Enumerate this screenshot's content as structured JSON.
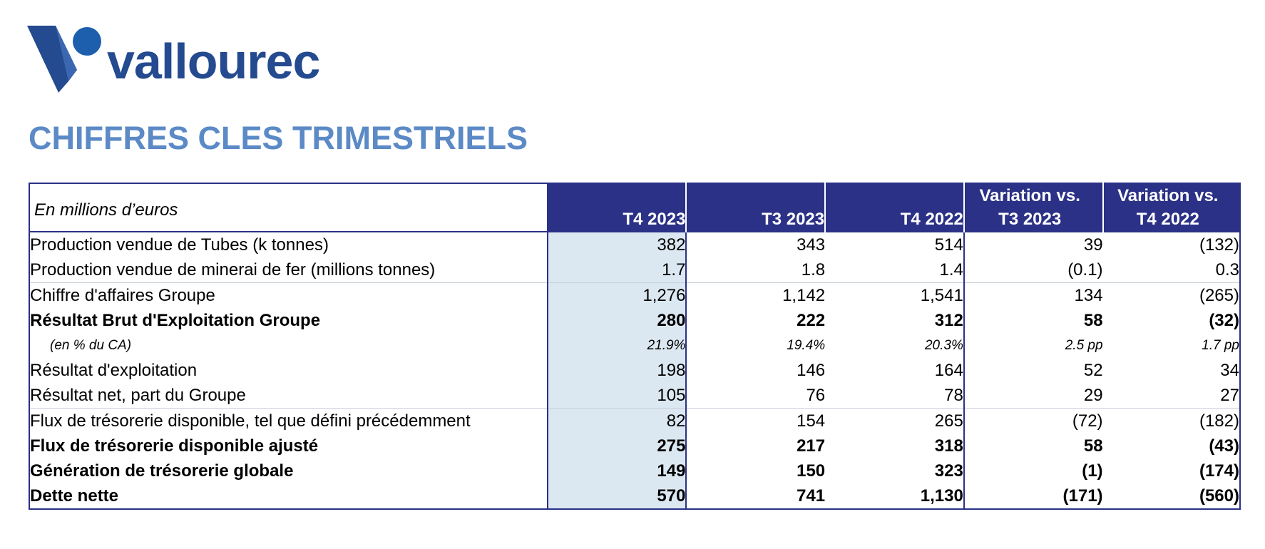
{
  "brand": {
    "name": "vallourec",
    "logo_color": "#244a8f",
    "logo_circle_color": "#1d5fad"
  },
  "page": {
    "title": "CHIFFRES CLES TRIMESTRIELS"
  },
  "table": {
    "unit_label": "En millions d’euros",
    "columns": [
      "T4 2023",
      "T3 2023",
      "T4 2022",
      "Variation vs.\nT3 2023",
      "Variation vs.\nT4 2022"
    ],
    "column_lines": [
      [
        "T4 2023"
      ],
      [
        "T3 2023"
      ],
      [
        "T4 2022"
      ],
      [
        "Variation vs.",
        "T3 2023"
      ],
      [
        "Variation vs.",
        "T4 2022"
      ]
    ],
    "header_color": "#2b3186",
    "highlight_column_color": "#dbe8f1",
    "rows": [
      {
        "label": "Production vendue de Tubes (k tonnes)",
        "values": [
          "382",
          "343",
          "514",
          "39",
          "(132)"
        ],
        "style": "normal"
      },
      {
        "label": "Production vendue de minerai de fer (millions tonnes)",
        "values": [
          "1.7",
          "1.8",
          "1.4",
          "(0.1)",
          "0.3"
        ],
        "style": "normal"
      },
      {
        "label": "Chiffre d'affaires Groupe",
        "values": [
          "1,276",
          "1,142",
          "1,541",
          "134",
          "(265)"
        ],
        "style": "normal"
      },
      {
        "label": "Résultat Brut d'Exploitation Groupe",
        "values": [
          "280",
          "222",
          "312",
          "58",
          "(32)"
        ],
        "style": "bold"
      },
      {
        "label": "(en % du CA)",
        "values": [
          "21.9%",
          "19.4%",
          "20.3%",
          "2.5 pp",
          "1.7 pp"
        ],
        "style": "pct"
      },
      {
        "label": "Résultat d'exploitation",
        "values": [
          "198",
          "146",
          "164",
          "52",
          "34"
        ],
        "style": "normal"
      },
      {
        "label": "Résultat net, part du Groupe",
        "values": [
          "105",
          "76",
          "78",
          "29",
          "27"
        ],
        "style": "normal"
      },
      {
        "label": "Flux de trésorerie disponible, tel que défini précédemment",
        "values": [
          "82",
          "154",
          "265",
          "(72)",
          "(182)"
        ],
        "style": "normal"
      },
      {
        "label": "Flux de trésorerie disponible ajusté",
        "values": [
          "275",
          "217",
          "318",
          "58",
          "(43)"
        ],
        "style": "bold"
      },
      {
        "label": "Génération de trésorerie globale",
        "values": [
          "149",
          "150",
          "323",
          "(1)",
          "(174)"
        ],
        "style": "bold"
      },
      {
        "label": "Dette nette",
        "values": [
          "570",
          "741",
          "1,130",
          "(171)",
          "(560)"
        ],
        "style": "bold"
      }
    ]
  }
}
